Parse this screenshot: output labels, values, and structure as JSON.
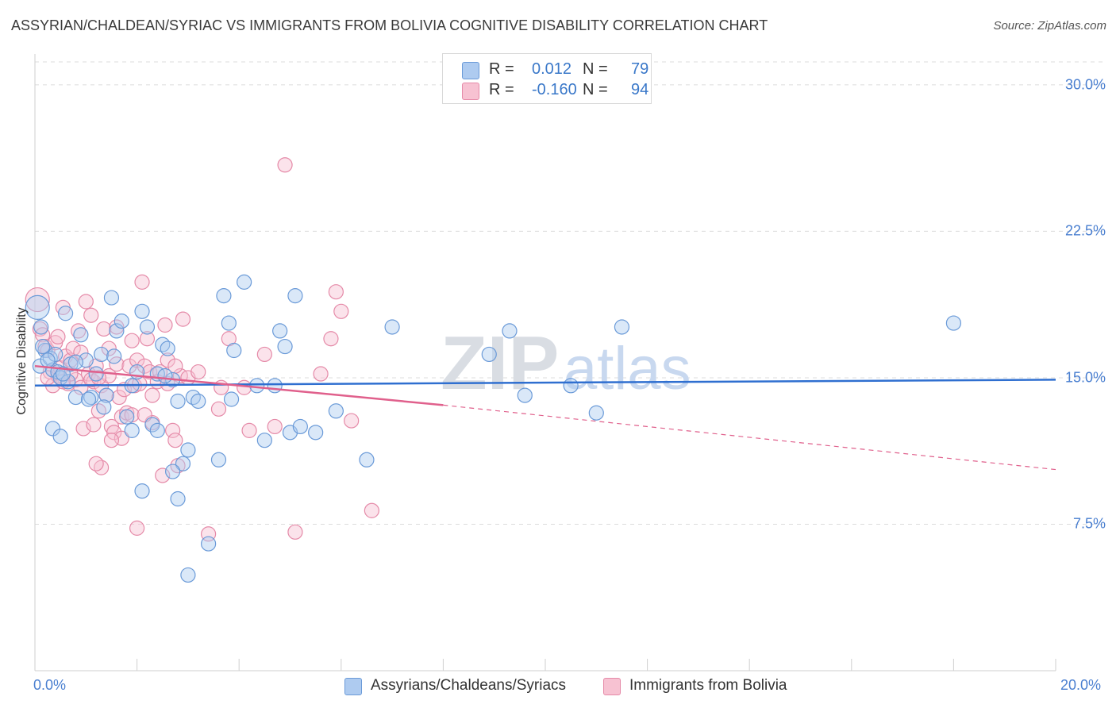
{
  "header": {
    "title": "ASSYRIAN/CHALDEAN/SYRIAC VS IMMIGRANTS FROM BOLIVIA COGNITIVE DISABILITY CORRELATION CHART",
    "source": "Source: ZipAtlas.com"
  },
  "watermark": {
    "zip": "ZIP",
    "atlas": "atlas"
  },
  "legend": {
    "r_label": "R =",
    "n_label": "N =",
    "series": [
      {
        "r": "0.012",
        "n": "79"
      },
      {
        "r": "-0.160",
        "n": "94"
      }
    ]
  },
  "colors": {
    "blue_fill": "#aecbf0",
    "blue_stroke": "#6a9ad8",
    "blue_line": "#2f6fd0",
    "pink_fill": "#f7c2d2",
    "pink_stroke": "#e58aa8",
    "pink_line": "#e0608c",
    "axis_text": "#4a7fd0"
  },
  "chart_data": {
    "type": "scatter",
    "title": "ASSYRIAN/CHALDEAN/SYRIAC VS IMMIGRANTS FROM BOLIVIA COGNITIVE DISABILITY CORRELATION CHART",
    "xlabel": "",
    "ylabel": "Cognitive Disability",
    "xlim": [
      0,
      20
    ],
    "ylim": [
      0,
      31.5
    ],
    "x_tick_labels": [
      "0.0%",
      "20.0%"
    ],
    "y_ticks": [
      7.5,
      15.0,
      22.5,
      30.0
    ],
    "y_tick_labels": [
      "7.5%",
      "15.0%",
      "22.5%",
      "30.0%"
    ],
    "grid": true,
    "legend_position": "top-center",
    "series": [
      {
        "name": "Assyrians/Chaldeans/Syriacs",
        "r": 0.012,
        "n": 79,
        "trend": {
          "x": [
            0,
            20
          ],
          "y": [
            14.6,
            14.9
          ]
        },
        "points": [
          [
            0.05,
            18.6
          ],
          [
            0.1,
            15.6
          ],
          [
            0.12,
            17.6
          ],
          [
            0.2,
            16.4
          ],
          [
            0.3,
            16.0
          ],
          [
            0.35,
            15.4
          ],
          [
            0.4,
            16.2
          ],
          [
            0.45,
            15.3
          ],
          [
            0.5,
            15.0
          ],
          [
            0.6,
            18.3
          ],
          [
            0.7,
            15.7
          ],
          [
            0.8,
            14.0
          ],
          [
            0.9,
            17.2
          ],
          [
            1.0,
            15.9
          ],
          [
            1.1,
            14.0
          ],
          [
            1.2,
            15.2
          ],
          [
            1.3,
            16.2
          ],
          [
            1.4,
            14.1
          ],
          [
            1.5,
            19.1
          ],
          [
            1.6,
            17.4
          ],
          [
            1.7,
            17.9
          ],
          [
            1.8,
            13.0
          ],
          [
            1.9,
            12.3
          ],
          [
            2.0,
            15.3
          ],
          [
            2.1,
            18.4
          ],
          [
            2.2,
            17.6
          ],
          [
            2.3,
            12.6
          ],
          [
            2.4,
            15.2
          ],
          [
            2.5,
            16.7
          ],
          [
            2.6,
            16.5
          ],
          [
            2.7,
            14.9
          ],
          [
            2.8,
            13.8
          ],
          [
            2.9,
            10.6
          ],
          [
            3.0,
            11.3
          ],
          [
            3.1,
            14.0
          ],
          [
            3.2,
            13.8
          ],
          [
            3.4,
            6.5
          ],
          [
            3.6,
            10.8
          ],
          [
            3.7,
            19.2
          ],
          [
            3.8,
            17.8
          ],
          [
            3.9,
            16.4
          ],
          [
            4.1,
            19.9
          ],
          [
            4.5,
            11.8
          ],
          [
            4.7,
            14.6
          ],
          [
            4.8,
            17.4
          ],
          [
            4.9,
            16.6
          ],
          [
            5.0,
            12.2
          ],
          [
            5.1,
            19.2
          ],
          [
            5.2,
            12.5
          ],
          [
            5.5,
            12.2
          ],
          [
            5.9,
            13.3
          ],
          [
            6.5,
            10.8
          ],
          [
            7.0,
            17.6
          ],
          [
            8.9,
            16.2
          ],
          [
            9.3,
            17.4
          ],
          [
            9.6,
            14.1
          ],
          [
            10.5,
            14.6
          ],
          [
            11.0,
            13.2
          ],
          [
            11.5,
            17.6
          ],
          [
            18.0,
            17.8
          ],
          [
            0.35,
            12.4
          ],
          [
            0.5,
            12.0
          ],
          [
            0.8,
            15.8
          ],
          [
            1.35,
            13.5
          ],
          [
            2.1,
            9.2
          ],
          [
            2.4,
            12.3
          ],
          [
            2.7,
            10.2
          ],
          [
            2.8,
            8.8
          ],
          [
            3.0,
            4.9
          ],
          [
            1.9,
            14.6
          ],
          [
            0.25,
            15.9
          ],
          [
            0.65,
            14.8
          ],
          [
            1.05,
            13.9
          ],
          [
            1.55,
            16.1
          ],
          [
            2.55,
            15.1
          ],
          [
            3.85,
            13.9
          ],
          [
            4.35,
            14.6
          ],
          [
            0.15,
            16.6
          ],
          [
            0.55,
            15.2
          ]
        ]
      },
      {
        "name": "Immigrants from Bolivia",
        "r": -0.16,
        "n": 94,
        "trend": {
          "x": [
            0,
            8
          ],
          "y": [
            15.6,
            13.6
          ]
        },
        "trend_extension": {
          "x": [
            8,
            20
          ],
          "y": [
            13.6,
            10.3
          ]
        },
        "points": [
          [
            0.05,
            19.0
          ],
          [
            0.1,
            17.5
          ],
          [
            0.15,
            17.2
          ],
          [
            0.2,
            16.6
          ],
          [
            0.25,
            16.4
          ],
          [
            0.3,
            15.3
          ],
          [
            0.35,
            14.6
          ],
          [
            0.4,
            16.8
          ],
          [
            0.45,
            15.1
          ],
          [
            0.5,
            15.5
          ],
          [
            0.55,
            18.6
          ],
          [
            0.6,
            16.1
          ],
          [
            0.65,
            14.7
          ],
          [
            0.7,
            15.9
          ],
          [
            0.75,
            16.5
          ],
          [
            0.8,
            14.9
          ],
          [
            0.85,
            17.4
          ],
          [
            0.9,
            14.5
          ],
          [
            0.95,
            12.4
          ],
          [
            1.0,
            18.9
          ],
          [
            1.05,
            15.2
          ],
          [
            1.1,
            18.2
          ],
          [
            1.15,
            14.8
          ],
          [
            1.2,
            15.6
          ],
          [
            1.25,
            13.3
          ],
          [
            1.3,
            14.6
          ],
          [
            1.35,
            17.5
          ],
          [
            1.4,
            14.1
          ],
          [
            1.45,
            15.1
          ],
          [
            1.5,
            12.5
          ],
          [
            1.55,
            12.2
          ],
          [
            1.6,
            15.7
          ],
          [
            1.65,
            14.0
          ],
          [
            1.7,
            13.0
          ],
          [
            1.75,
            14.4
          ],
          [
            1.8,
            13.2
          ],
          [
            1.85,
            15.6
          ],
          [
            1.9,
            16.9
          ],
          [
            1.95,
            14.6
          ],
          [
            2.0,
            15.9
          ],
          [
            2.1,
            19.9
          ],
          [
            2.15,
            15.6
          ],
          [
            2.2,
            17.0
          ],
          [
            2.25,
            15.3
          ],
          [
            2.3,
            14.1
          ],
          [
            2.4,
            14.8
          ],
          [
            2.5,
            10.0
          ],
          [
            2.55,
            17.7
          ],
          [
            2.6,
            14.7
          ],
          [
            2.7,
            12.3
          ],
          [
            2.75,
            11.8
          ],
          [
            2.8,
            10.5
          ],
          [
            2.85,
            15.1
          ],
          [
            2.9,
            18.0
          ],
          [
            3.0,
            15.0
          ],
          [
            3.4,
            7.0
          ],
          [
            3.6,
            13.4
          ],
          [
            3.8,
            17.0
          ],
          [
            4.1,
            14.5
          ],
          [
            4.2,
            12.3
          ],
          [
            5.1,
            7.1
          ],
          [
            5.6,
            15.2
          ],
          [
            5.8,
            17.0
          ],
          [
            5.9,
            19.4
          ],
          [
            6.0,
            18.4
          ],
          [
            6.2,
            12.8
          ],
          [
            6.6,
            8.2
          ],
          [
            1.1,
            14.9
          ],
          [
            1.3,
            10.4
          ],
          [
            1.2,
            10.6
          ],
          [
            0.7,
            15.2
          ],
          [
            1.7,
            11.9
          ],
          [
            1.9,
            13.1
          ],
          [
            2.6,
            15.9
          ],
          [
            2.3,
            12.7
          ],
          [
            4.9,
            25.9
          ],
          [
            4.5,
            16.2
          ],
          [
            3.2,
            15.3
          ],
          [
            1.5,
            11.8
          ],
          [
            0.45,
            17.1
          ],
          [
            0.25,
            15.0
          ],
          [
            2.0,
            7.3
          ],
          [
            2.45,
            15.3
          ],
          [
            3.65,
            14.5
          ],
          [
            1.15,
            12.6
          ],
          [
            2.75,
            15.6
          ],
          [
            0.9,
            16.3
          ],
          [
            1.45,
            16.5
          ],
          [
            2.15,
            13.1
          ],
          [
            0.55,
            14.8
          ],
          [
            1.6,
            17.6
          ],
          [
            2.05,
            14.7
          ],
          [
            4.7,
            12.5
          ],
          [
            1.25,
            15.0
          ]
        ]
      }
    ]
  },
  "bottom_legend": [
    "Assyrians/Chaldeans/Syriacs",
    "Immigrants from Bolivia"
  ]
}
